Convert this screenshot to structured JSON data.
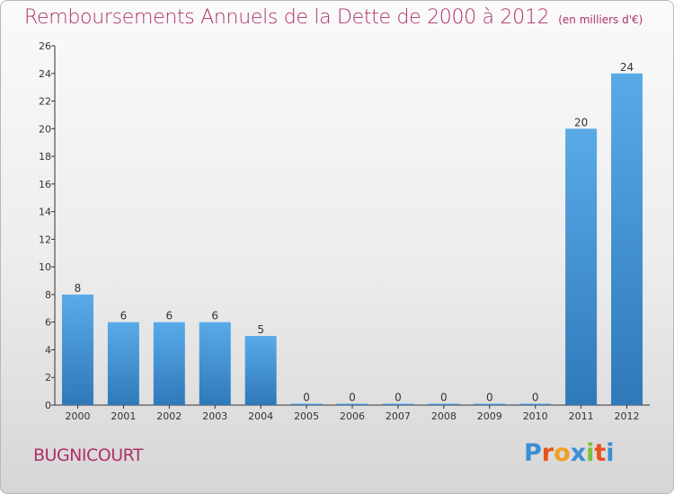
{
  "header": {
    "title": "Remboursements Annuels de la Dette de 2000 à 2012",
    "unit": "(en milliers d'€)"
  },
  "footer": {
    "commune": "BUGNICOURT",
    "logo_letters": [
      "P",
      "r",
      "o",
      "x",
      "i",
      "t",
      "i"
    ],
    "logo_colors": [
      "#3a8fd6",
      "#e8531d",
      "#f0a020",
      "#3a8fd6",
      "#7bbf3a",
      "#e8531d",
      "#3a8fd6"
    ]
  },
  "chart_data": {
    "type": "bar",
    "title": "Remboursements Annuels de la Dette de 2000 à 2012",
    "xlabel": "",
    "ylabel": "",
    "categories": [
      "2000",
      "2001",
      "2002",
      "2003",
      "2004",
      "2005",
      "2006",
      "2007",
      "2008",
      "2009",
      "2010",
      "2011",
      "2012"
    ],
    "values": [
      8,
      6,
      6,
      6,
      5,
      0,
      0,
      0,
      0,
      0,
      0,
      20,
      24
    ],
    "data_labels": [
      "8",
      "6",
      "6",
      "6",
      "5",
      "0",
      "0",
      "0",
      "0",
      "0",
      "0",
      "20",
      "24"
    ],
    "ylim": [
      0,
      26
    ],
    "yticks": [
      0,
      2,
      4,
      6,
      8,
      10,
      12,
      14,
      16,
      18,
      20,
      22,
      24,
      26
    ],
    "grid": false,
    "bar_color_top": "#5aaae8",
    "bar_color_bottom": "#2f79b9"
  }
}
